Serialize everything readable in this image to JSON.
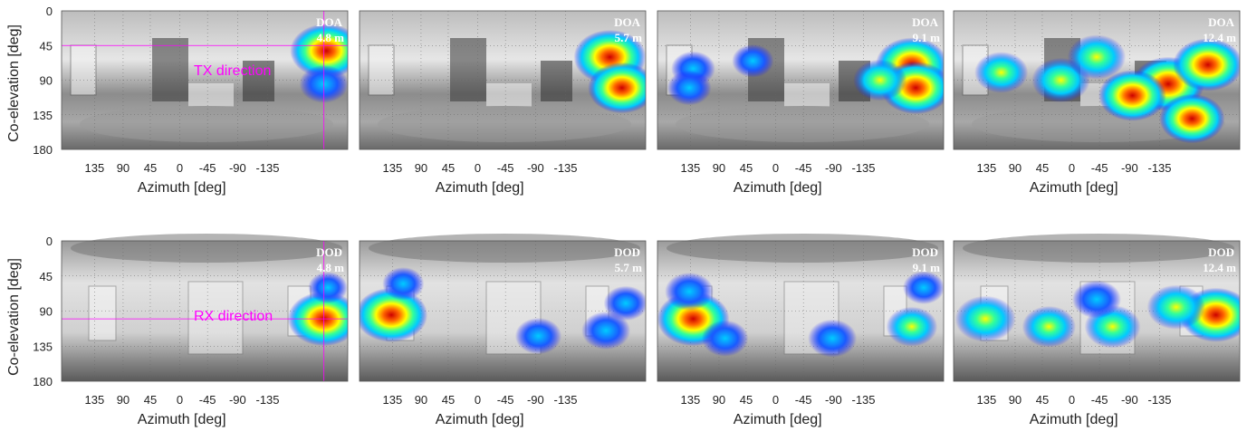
{
  "figure": {
    "ylabel": "Co-elevation [deg]",
    "xlabel": "Azimuth [deg]",
    "x_ticks": [
      "135",
      "90",
      "45",
      "0",
      "-45",
      "-90",
      "-135"
    ],
    "y_ticks": [
      "0",
      "45",
      "90",
      "135",
      "180"
    ],
    "colormap": [
      "#1a1aff",
      "#00ccff",
      "#33ff99",
      "#ffff00",
      "#ff6600",
      "#cc0000"
    ],
    "line_color": "#ff00ff"
  },
  "chart_data": [
    {
      "type": "heatmap",
      "row": "top",
      "label": "DOA",
      "distance": "4.8 m",
      "annotation": "TX direction",
      "annotation_line": {
        "azimuth": -150,
        "coelevation": 45
      },
      "xlabel": "Azimuth [deg]",
      "ylabel": "Co-elevation [deg]",
      "xlim": [
        180,
        -180
      ],
      "ylim": [
        0,
        180
      ],
      "hotspots": [
        {
          "azimuth": -153,
          "coelevation": 52,
          "intensity": 1.0
        },
        {
          "azimuth": -150,
          "coelevation": 95,
          "intensity": 0.5
        }
      ]
    },
    {
      "type": "heatmap",
      "row": "top",
      "label": "DOA",
      "distance": "5.7 m",
      "xlabel": "Azimuth [deg]",
      "ylim": [
        0,
        180
      ],
      "hotspots": [
        {
          "azimuth": -135,
          "coelevation": 60,
          "intensity": 1.0
        },
        {
          "azimuth": -150,
          "coelevation": 100,
          "intensity": 0.9
        }
      ]
    },
    {
      "type": "heatmap",
      "row": "top",
      "label": "DOA",
      "distance": "9.1 m",
      "xlabel": "Azimuth [deg]",
      "ylim": [
        0,
        180
      ],
      "hotspots": [
        {
          "azimuth": -140,
          "coelevation": 70,
          "intensity": 1.0
        },
        {
          "azimuth": -145,
          "coelevation": 100,
          "intensity": 0.95
        },
        {
          "azimuth": -100,
          "coelevation": 90,
          "intensity": 0.6
        },
        {
          "azimuth": 135,
          "coelevation": 75,
          "intensity": 0.4
        },
        {
          "azimuth": 140,
          "coelevation": 100,
          "intensity": 0.4
        },
        {
          "azimuth": 60,
          "coelevation": 65,
          "intensity": 0.35
        }
      ]
    },
    {
      "type": "heatmap",
      "row": "top",
      "label": "DOA",
      "distance": "12.4 m",
      "xlabel": "Azimuth [deg]",
      "ylim": [
        0,
        180
      ],
      "hotspots": [
        {
          "azimuth": -90,
          "coelevation": 95,
          "intensity": 1.0
        },
        {
          "azimuth": -140,
          "coelevation": 70,
          "intensity": 0.95
        },
        {
          "azimuth": -45,
          "coelevation": 110,
          "intensity": 0.9
        },
        {
          "azimuth": 45,
          "coelevation": 90,
          "intensity": 0.7
        },
        {
          "azimuth": 120,
          "coelevation": 80,
          "intensity": 0.6
        },
        {
          "azimuth": -120,
          "coelevation": 140,
          "intensity": 0.85
        },
        {
          "azimuth": 0,
          "coelevation": 60,
          "intensity": 0.7
        }
      ]
    },
    {
      "type": "heatmap",
      "row": "bottom",
      "label": "DOD",
      "distance": "4.8 m",
      "annotation": "RX direction",
      "annotation_line": {
        "azimuth": -150,
        "coelevation": 100
      },
      "xlabel": "Azimuth [deg]",
      "ylabel": "Co-elevation [deg]",
      "ylim": [
        0,
        180
      ],
      "hotspots": [
        {
          "azimuth": -150,
          "coelevation": 100,
          "intensity": 1.0
        },
        {
          "azimuth": -155,
          "coelevation": 60,
          "intensity": 0.3
        }
      ]
    },
    {
      "type": "heatmap",
      "row": "bottom",
      "label": "DOD",
      "distance": "5.7 m",
      "xlabel": "Azimuth [deg]",
      "ylim": [
        0,
        180
      ],
      "hotspots": [
        {
          "azimuth": 140,
          "coelevation": 95,
          "intensity": 1.0
        },
        {
          "azimuth": 125,
          "coelevation": 55,
          "intensity": 0.35
        },
        {
          "azimuth": -45,
          "coelevation": 122,
          "intensity": 0.45
        },
        {
          "azimuth": -130,
          "coelevation": 115,
          "intensity": 0.5
        },
        {
          "azimuth": -155,
          "coelevation": 80,
          "intensity": 0.4
        }
      ]
    },
    {
      "type": "heatmap",
      "row": "bottom",
      "label": "DOD",
      "distance": "9.1 m",
      "xlabel": "Azimuth [deg]",
      "ylim": [
        0,
        180
      ],
      "hotspots": [
        {
          "azimuth": 135,
          "coelevation": 100,
          "intensity": 1.0
        },
        {
          "azimuth": 140,
          "coelevation": 65,
          "intensity": 0.5
        },
        {
          "azimuth": 95,
          "coelevation": 125,
          "intensity": 0.45
        },
        {
          "azimuth": -40,
          "coelevation": 125,
          "intensity": 0.5
        },
        {
          "azimuth": -140,
          "coelevation": 110,
          "intensity": 0.55
        },
        {
          "azimuth": -155,
          "coelevation": 60,
          "intensity": 0.35
        }
      ]
    },
    {
      "type": "heatmap",
      "row": "bottom",
      "label": "DOD",
      "distance": "12.4 m",
      "xlabel": "Azimuth [deg]",
      "ylim": [
        0,
        180
      ],
      "hotspots": [
        {
          "azimuth": -150,
          "coelevation": 95,
          "intensity": 1.0
        },
        {
          "azimuth": 140,
          "coelevation": 100,
          "intensity": 0.75
        },
        {
          "azimuth": 60,
          "coelevation": 110,
          "intensity": 0.6
        },
        {
          "azimuth": -20,
          "coelevation": 110,
          "intensity": 0.65
        },
        {
          "azimuth": -100,
          "coelevation": 85,
          "intensity": 0.7
        },
        {
          "azimuth": 0,
          "coelevation": 75,
          "intensity": 0.5
        }
      ]
    }
  ]
}
